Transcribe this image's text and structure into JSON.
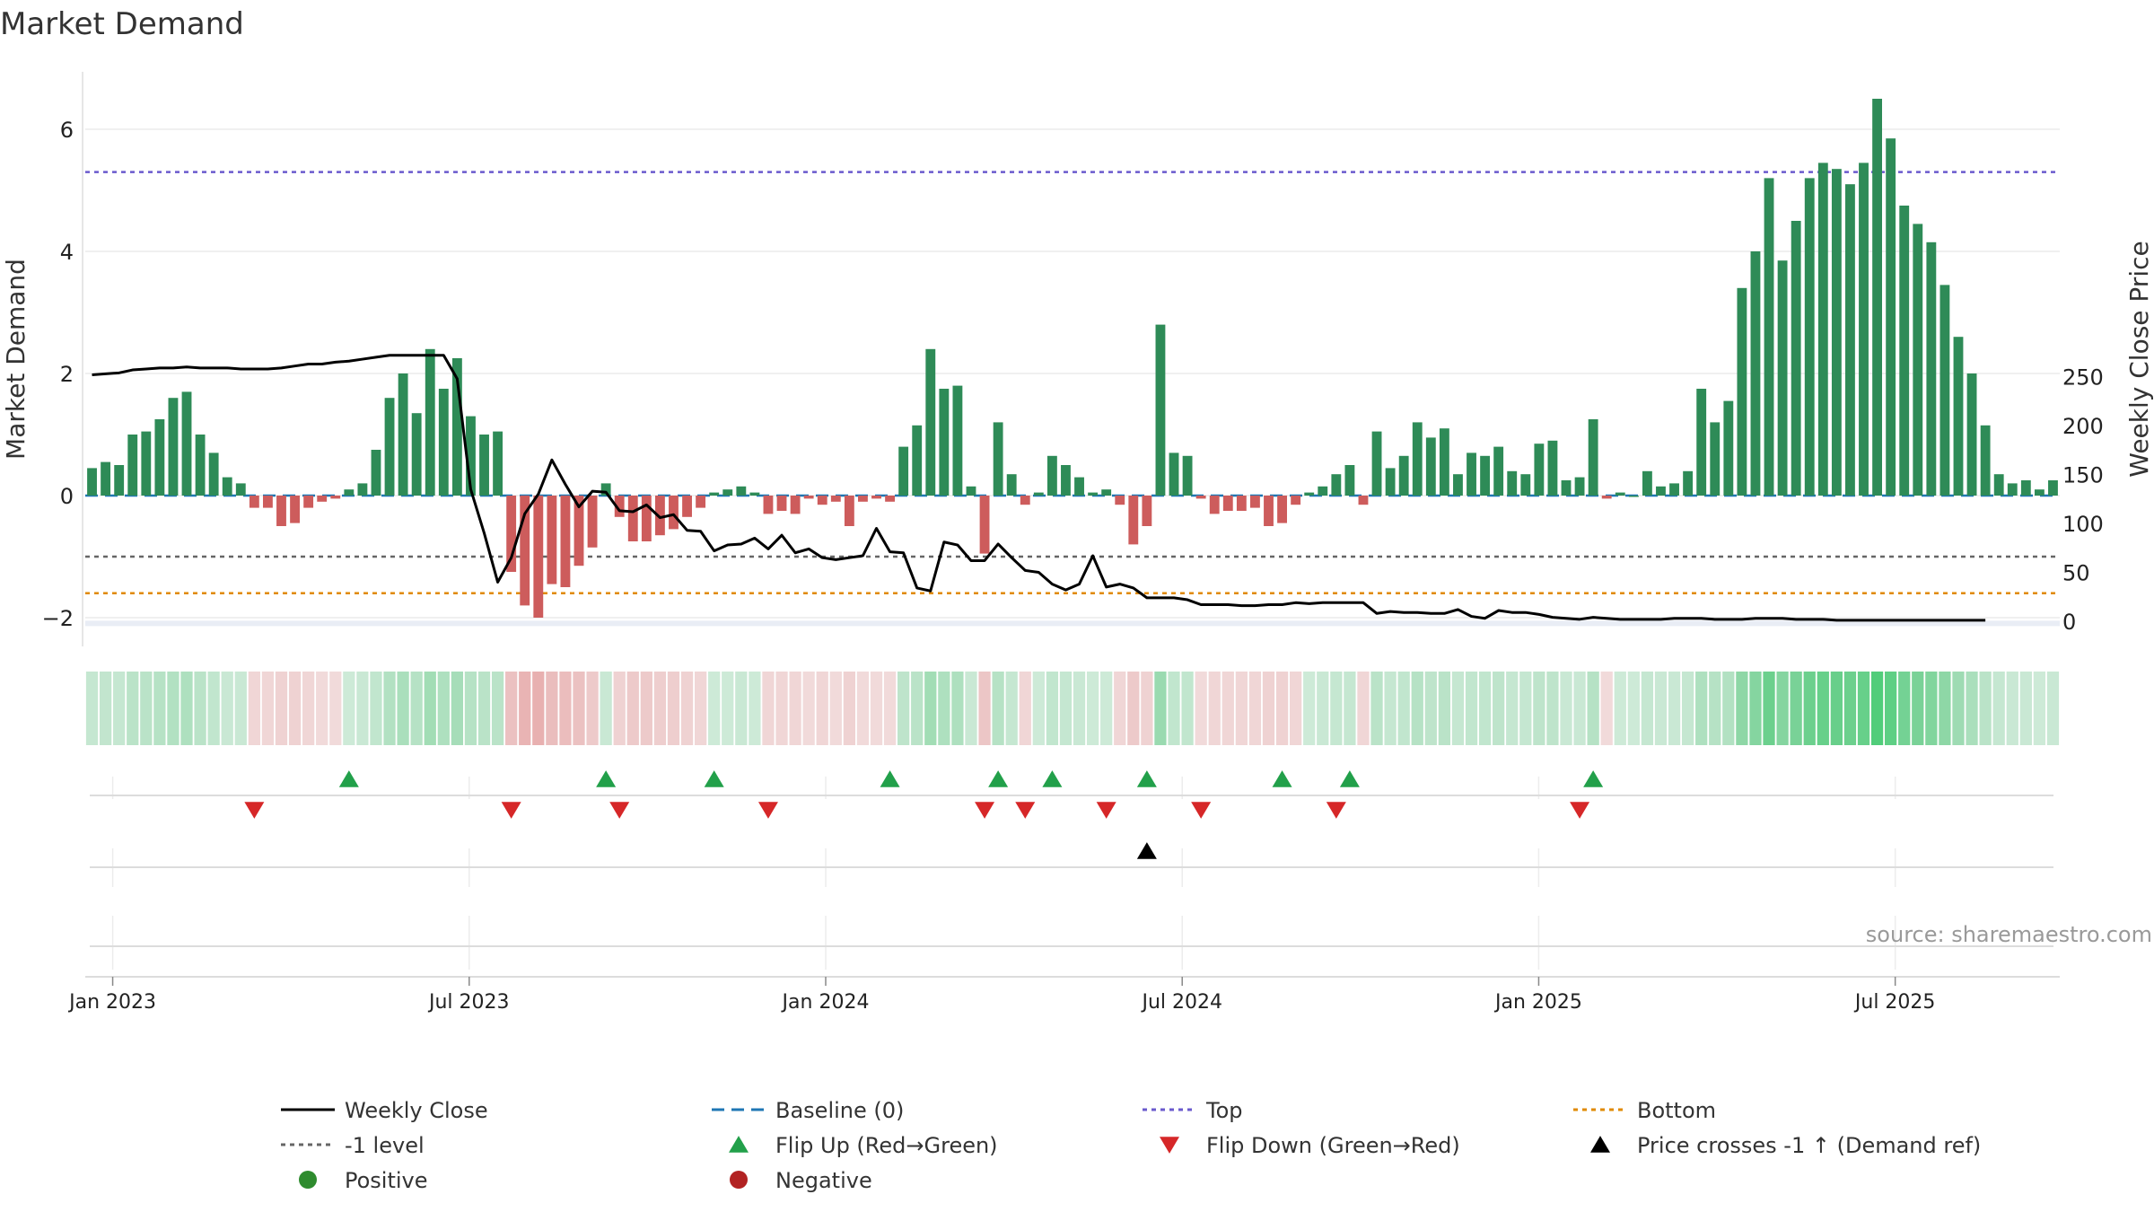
{
  "title": "Market Demand",
  "source": "source: sharemaestro.com",
  "chart_data": {
    "type": "bar",
    "title": "Market Demand",
    "ylabel": "Market Demand",
    "y2label": "Weekly Close Price",
    "ylim": [
      -2.1,
      7.0
    ],
    "y2lim": [
      -3,
      288
    ],
    "y_ticks": [
      {
        "v": 6,
        "label": "6"
      },
      {
        "v": 4,
        "label": "4"
      },
      {
        "v": 2,
        "label": "2"
      },
      {
        "v": 0,
        "label": "0"
      },
      {
        "v": -2,
        "label": "−2"
      }
    ],
    "y2_ticks": [
      {
        "v": 250,
        "label": "250"
      },
      {
        "v": 200,
        "label": "200"
      },
      {
        "v": 150,
        "label": "150"
      },
      {
        "v": 100,
        "label": "100"
      },
      {
        "v": 50,
        "label": "50"
      },
      {
        "v": 0,
        "label": "0"
      }
    ],
    "x_ticks": [
      {
        "week": 2,
        "label": "Jan 2023"
      },
      {
        "week": 28,
        "label": "Jul 2023"
      },
      {
        "week": 54,
        "label": "Jan 2024"
      },
      {
        "week": 80,
        "label": "Jul 2024"
      },
      {
        "week": 106,
        "label": "Jan 2025"
      },
      {
        "week": 132,
        "label": "Jul 2025"
      }
    ],
    "week_range": [
      0,
      144
    ],
    "reference_levels": {
      "top": 5.3,
      "minus1": -1.0,
      "bottom": -1.6,
      "baseline": 0
    },
    "demand": [
      0.45,
      0.55,
      0.5,
      1.0,
      1.05,
      1.25,
      1.6,
      1.7,
      1.0,
      0.7,
      0.3,
      0.2,
      -0.2,
      -0.2,
      -0.5,
      -0.45,
      -0.2,
      -0.1,
      -0.05,
      0.1,
      0.2,
      0.75,
      1.6,
      2.0,
      1.35,
      2.4,
      1.75,
      2.25,
      1.3,
      1.0,
      1.05,
      -1.25,
      -1.8,
      -2.0,
      -1.45,
      -1.5,
      -1.15,
      -0.85,
      0.2,
      -0.35,
      -0.75,
      -0.75,
      -0.65,
      -0.55,
      -0.35,
      -0.2,
      0.05,
      0.1,
      0.15,
      0.05,
      -0.3,
      -0.25,
      -0.3,
      -0.05,
      -0.15,
      -0.1,
      -0.5,
      -0.1,
      -0.05,
      -0.1,
      0.8,
      1.15,
      2.4,
      1.75,
      1.8,
      0.15,
      -0.95,
      1.2,
      0.35,
      -0.15,
      0.05,
      0.65,
      0.5,
      0.3,
      0.05,
      0.1,
      -0.15,
      -0.8,
      -0.5,
      2.8,
      0.7,
      0.65,
      -0.05,
      -0.3,
      -0.25,
      -0.25,
      -0.2,
      -0.5,
      -0.45,
      -0.15,
      0.05,
      0.15,
      0.35,
      0.5,
      -0.15,
      1.05,
      0.45,
      0.65,
      1.2,
      0.95,
      1.1,
      0.35,
      0.7,
      0.65,
      0.8,
      0.4,
      0.35,
      0.85,
      0.9,
      0.25,
      0.3,
      1.25,
      -0.05,
      0.05,
      0.0,
      0.4,
      0.15,
      0.2,
      0.4,
      1.75,
      1.2,
      1.55,
      3.4,
      4.0,
      5.2,
      3.85,
      4.5,
      5.2,
      5.45,
      5.35,
      5.1,
      5.45,
      6.5,
      5.85,
      4.75,
      4.45,
      4.15,
      3.45,
      2.6,
      2.0,
      1.15,
      0.35,
      0.2,
      0.25,
      0.1,
      0.25
    ],
    "weekly_close": [
      252,
      253,
      254,
      257,
      258,
      259,
      259,
      260,
      259,
      259,
      259,
      258,
      258,
      258,
      259,
      261,
      263,
      263,
      265,
      266,
      268,
      270,
      272,
      272,
      272,
      272,
      272,
      248,
      135,
      90,
      40,
      65,
      110,
      130,
      165,
      140,
      117,
      133,
      132,
      113,
      112,
      119,
      106,
      109,
      93,
      92,
      72,
      78,
      79,
      85,
      74,
      88,
      70,
      74,
      65,
      63,
      65,
      67,
      95,
      71,
      70,
      34,
      31,
      81,
      78,
      62,
      62,
      79,
      65,
      52,
      50,
      38,
      32,
      38,
      67,
      35,
      38,
      34,
      24,
      24,
      24,
      22,
      17,
      17,
      17,
      16,
      16,
      17,
      17,
      19,
      18,
      19,
      19,
      19,
      19,
      8,
      10,
      9,
      9,
      8,
      8,
      12,
      5,
      3,
      11,
      9,
      9,
      7,
      4,
      3,
      2,
      4,
      3,
      2,
      2,
      2,
      2,
      3,
      3,
      3,
      2,
      2,
      2,
      3,
      3,
      3,
      2,
      2,
      2,
      1,
      1,
      1,
      1,
      1,
      1,
      1,
      1,
      1,
      1,
      1,
      1
    ],
    "flip_up_weeks": [
      19,
      38,
      46,
      59,
      67,
      71,
      78,
      88,
      93,
      111
    ],
    "flip_down_weeks": [
      12,
      31,
      39,
      50,
      66,
      69,
      75,
      82,
      92,
      110
    ],
    "price_cross_weeks": [
      78
    ],
    "colors": {
      "positive_bar": "#2e8b57",
      "negative_bar": "#cd5c5c",
      "weekly_close": "#000000",
      "baseline": "#1f77b4",
      "top": "#6a5acd",
      "minus1": "#666666",
      "bottom": "#e08a00",
      "flip_up": "#22a04a",
      "flip_down": "#d62728",
      "price_cross": "#000000",
      "positive_dot": "#2e8b2e",
      "negative_dot": "#b22222"
    },
    "legend": [
      {
        "key": "weekly_close",
        "label": "Weekly Close",
        "marker": "line-solid"
      },
      {
        "key": "baseline",
        "label": "Baseline (0)",
        "marker": "line-dashed"
      },
      {
        "key": "top",
        "label": "Top",
        "marker": "line-dotted"
      },
      {
        "key": "bottom",
        "label": "Bottom",
        "marker": "line-dotted"
      },
      {
        "key": "minus1",
        "label": "-1 level",
        "marker": "line-dotted"
      },
      {
        "key": "flip_up",
        "label": "Flip Up (Red→Green)",
        "marker": "triangle-up"
      },
      {
        "key": "flip_down",
        "label": "Flip Down (Green→Red)",
        "marker": "triangle-down"
      },
      {
        "key": "price_cross",
        "label": "Price crosses -1 ↑ (Demand ref)",
        "marker": "triangle-up"
      },
      {
        "key": "positive_dot",
        "label": "Positive",
        "marker": "circle"
      },
      {
        "key": "negative_dot",
        "label": "Negative",
        "marker": "circle"
      }
    ],
    "legend_placement": "bottom"
  }
}
